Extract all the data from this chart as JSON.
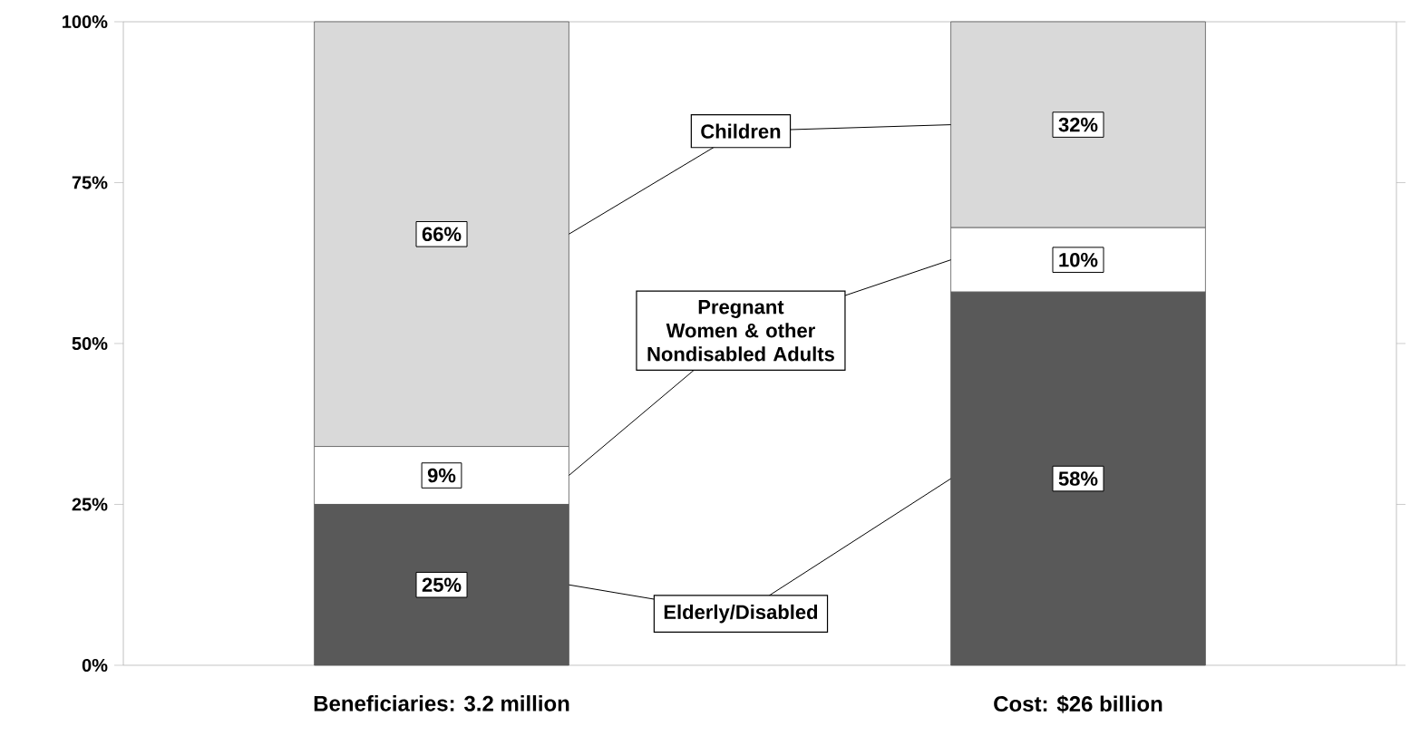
{
  "chart_data": {
    "type": "bar",
    "stacked": true,
    "categories": [
      "Beneficiaries: 3.2 million",
      "Cost: $26 billion"
    ],
    "series": [
      {
        "name": "Elderly/Disabled",
        "color": "#595959",
        "values": [
          25,
          58
        ],
        "value_labels": [
          "25%",
          "58%"
        ]
      },
      {
        "name": "Pregnant Women & other Nondisabled Adults",
        "color": "#ffffff",
        "values": [
          9,
          10
        ],
        "value_labels": [
          "9%",
          "10%"
        ]
      },
      {
        "name": "Children",
        "color": "#d9d9d9",
        "values": [
          66,
          32
        ],
        "value_labels": [
          "66%",
          "32%"
        ]
      }
    ],
    "ylim": [
      0,
      100
    ],
    "yticks": [
      {
        "value": 0,
        "label": "0%"
      },
      {
        "value": 25,
        "label": "25%"
      },
      {
        "value": 50,
        "label": "50%"
      },
      {
        "value": 75,
        "label": "75%"
      },
      {
        "value": 100,
        "label": "100%"
      }
    ],
    "legend": false,
    "grid": false
  }
}
